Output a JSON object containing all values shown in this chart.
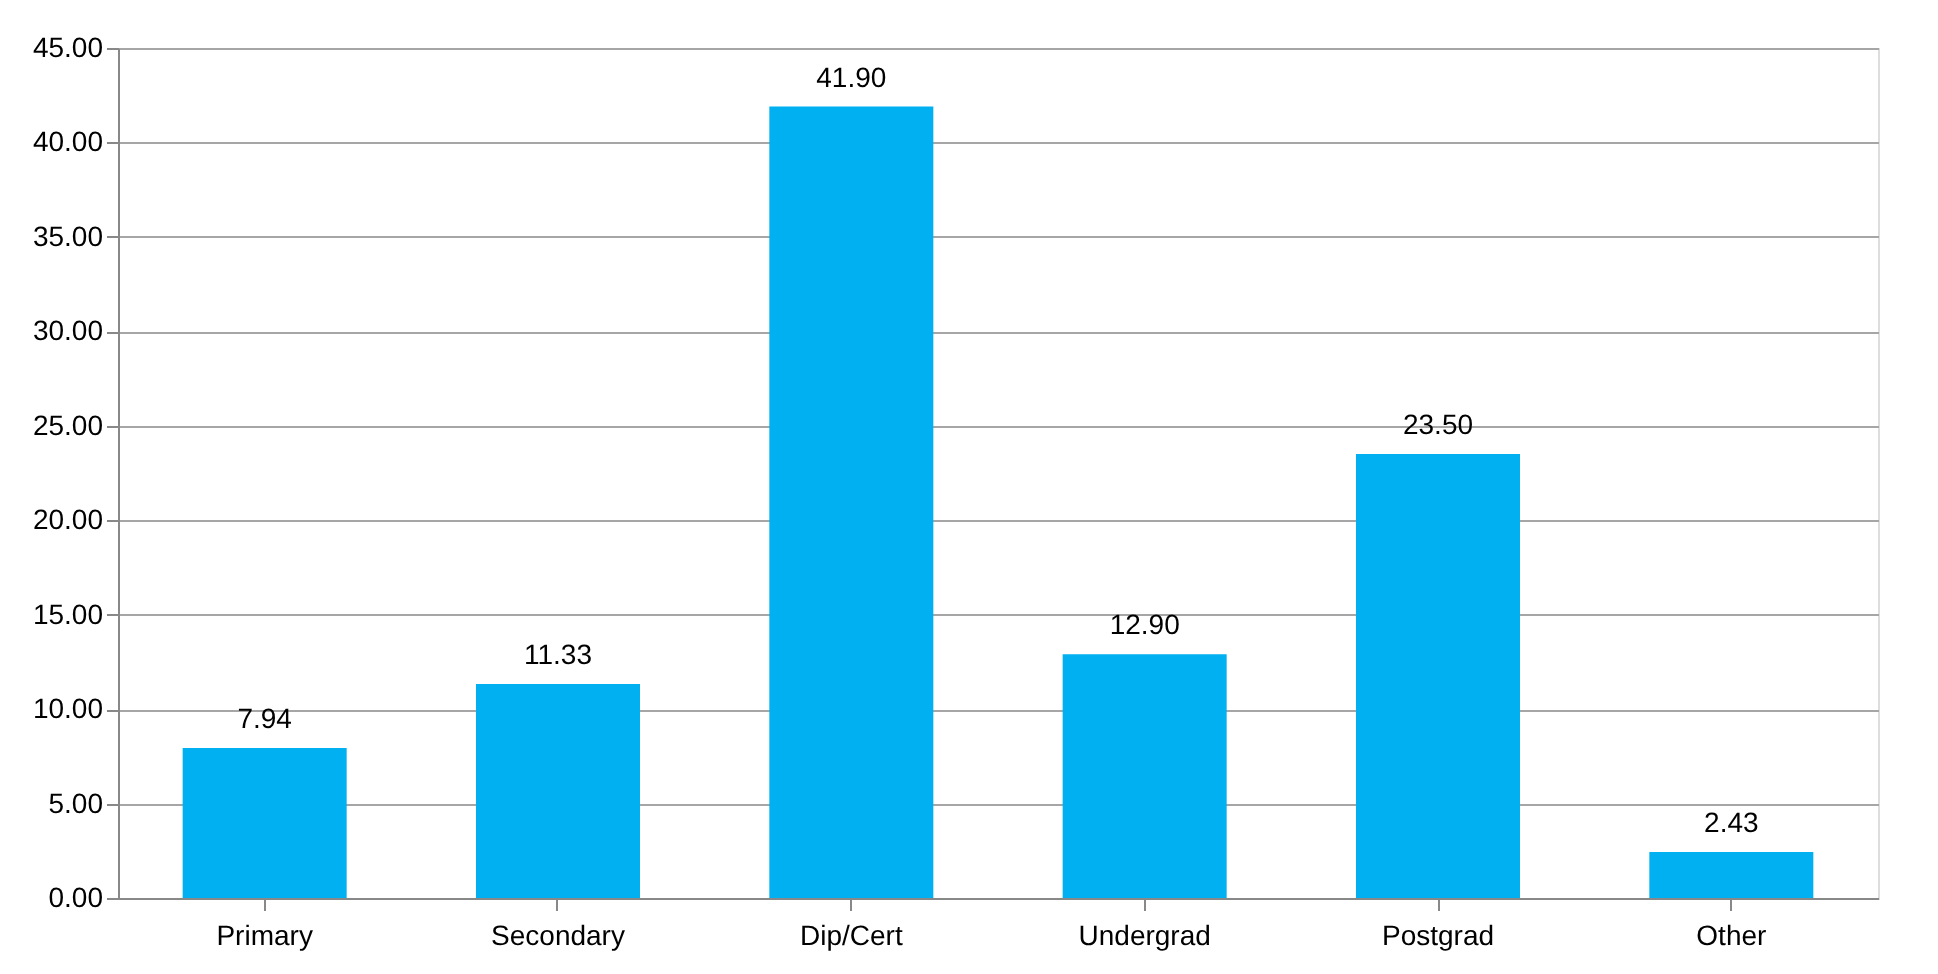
{
  "chart_data": {
    "type": "bar",
    "categories": [
      "Primary",
      "Secondary",
      "Dip/Cert",
      "Undergrad",
      "Postgrad",
      "Other"
    ],
    "values": [
      7.94,
      11.33,
      41.9,
      12.9,
      23.5,
      2.43
    ],
    "value_labels": [
      "7.94",
      "11.33",
      "41.90",
      "12.90",
      "23.50",
      "2.43"
    ],
    "color": "#00b0f0",
    "ylim": [
      0,
      45
    ],
    "yticks": [
      {
        "value": 0,
        "label": "0.00"
      },
      {
        "value": 5,
        "label": "5.00"
      },
      {
        "value": 10,
        "label": "10.00"
      },
      {
        "value": 15,
        "label": "15.00"
      },
      {
        "value": 20,
        "label": "20.00"
      },
      {
        "value": 25,
        "label": "25.00"
      },
      {
        "value": 30,
        "label": "30.00"
      },
      {
        "value": 35,
        "label": "35.00"
      },
      {
        "value": 40,
        "label": "40.00"
      },
      {
        "value": 45,
        "label": "45.00"
      }
    ],
    "grid": "y"
  }
}
